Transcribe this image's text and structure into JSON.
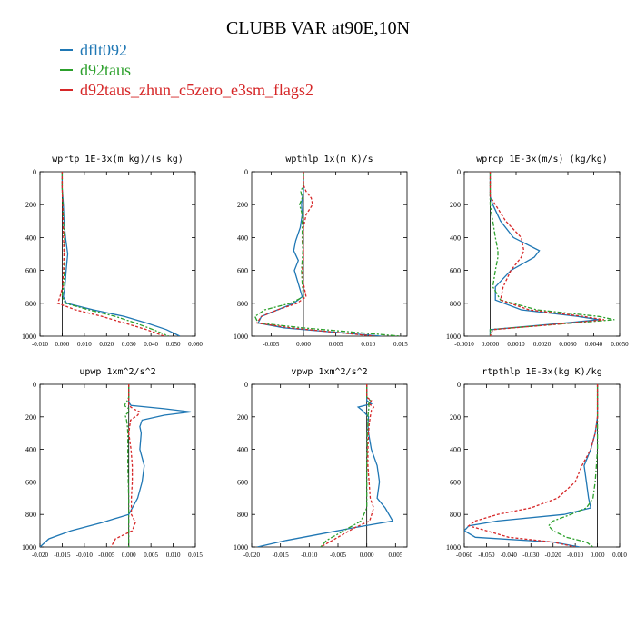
{
  "title": "CLUBB VAR at90E,10N",
  "legend": [
    {
      "name": "dflt092",
      "color": "#1f77b4"
    },
    {
      "name": "d92taus",
      "color": "#2ca02c"
    },
    {
      "name": "d92taus_zhun_c5zero_e3sm_flags2",
      "color": "#d62728"
    }
  ],
  "chart_data": [
    {
      "type": "line",
      "title": "wprtp  1E-3x(m kg)/(s kg)",
      "xlim": [
        -0.01,
        0.06
      ],
      "ylim": [
        0,
        1000
      ],
      "xticks": [
        "-0.010",
        "0.000",
        "0.010",
        "0.020",
        "0.030",
        "0.040",
        "0.050",
        "0.060"
      ],
      "yticks": [
        "0",
        "200",
        "400",
        "600",
        "800",
        "1000"
      ],
      "y": [
        0,
        100,
        200,
        300,
        400,
        500,
        600,
        700,
        760,
        800,
        840,
        880,
        920,
        960,
        1000
      ],
      "series": [
        {
          "name": "dflt092",
          "values": [
            0,
            0,
            0.0005,
            0.0008,
            0.0015,
            0.0025,
            0.0018,
            0.0012,
            0.0005,
            0.002,
            0.014,
            0.028,
            0.038,
            0.047,
            0.053
          ]
        },
        {
          "name": "d92taus",
          "values": [
            0,
            0,
            0.0003,
            0.0005,
            0.001,
            0.0012,
            0.001,
            0.0005,
            0,
            0.0015,
            0.012,
            0.024,
            0.033,
            0.041,
            0.048
          ]
        },
        {
          "name": "d92taus_zhun_c5zero_e3sm_flags2",
          "values": [
            0,
            0,
            0.0002,
            0.0004,
            0.0006,
            0.0008,
            0.0006,
            0.0002,
            -0.001,
            -0.002,
            0.006,
            0.018,
            0.028,
            0.038,
            0.046
          ]
        }
      ]
    },
    {
      "type": "line",
      "title": "wpthlp  1x(m K)/s",
      "xlim": [
        -0.008,
        0.016
      ],
      "ylim": [
        0,
        1000
      ],
      "xticks": [
        "-0.005",
        "0.000",
        "0.005",
        "0.010",
        "0.015"
      ],
      "yticks": [
        "0",
        "200",
        "400",
        "600",
        "800",
        "1000"
      ],
      "y": [
        0,
        80,
        120,
        160,
        200,
        260,
        340,
        420,
        480,
        540,
        600,
        680,
        760,
        800,
        840,
        880,
        920,
        950,
        1000
      ],
      "series": [
        {
          "name": "dflt092",
          "values": [
            0,
            0,
            0,
            -0.0002,
            -0.0003,
            -0.0002,
            -0.0005,
            -0.0012,
            -0.0015,
            -0.0008,
            -0.0014,
            -0.0008,
            -0.0002,
            -0.0015,
            -0.004,
            -0.0065,
            -0.007,
            -0.003,
            0.012
          ]
        },
        {
          "name": "d92taus",
          "values": [
            0,
            0,
            -0.0004,
            -0.0002,
            -0.0006,
            -0.0002,
            -0.0002,
            -0.0002,
            -0.0001,
            -0.0002,
            -0.0003,
            -0.0002,
            0,
            -0.002,
            -0.006,
            -0.0075,
            -0.007,
            0,
            0.015
          ]
        },
        {
          "name": "d92taus_zhun_c5zero_e3sm_flags2",
          "values": [
            0,
            0,
            0.0004,
            0.0012,
            0.0014,
            0.0004,
            0,
            -0.0001,
            0,
            0,
            -0.0002,
            0,
            0.0004,
            -0.001,
            -0.004,
            -0.0065,
            -0.0072,
            -0.002,
            0.011
          ]
        }
      ]
    },
    {
      "type": "line",
      "title": "wprcp  1E-3x(m/s) (kg/kg)",
      "xlim": [
        -0.001,
        0.005
      ],
      "ylim": [
        0,
        1000
      ],
      "xticks": [
        "-0.0010",
        "0.0000",
        "0.0010",
        "0.0020",
        "0.0030",
        "0.0040",
        "0.0050"
      ],
      "yticks": [
        "0",
        "200",
        "400",
        "600",
        "800",
        "1000"
      ],
      "y": [
        0,
        100,
        150,
        200,
        300,
        400,
        480,
        520,
        600,
        700,
        780,
        840,
        880,
        900,
        930,
        960,
        1000
      ],
      "series": [
        {
          "name": "dflt092",
          "values": [
            0,
            0,
            0,
            0.0001,
            0.0004,
            0.0009,
            0.0019,
            0.0017,
            0.0008,
            0.0002,
            0.0002,
            0.0012,
            0.0034,
            0.0042,
            0.0022,
            0,
            0
          ]
        },
        {
          "name": "d92taus",
          "values": [
            0,
            0,
            0,
            0,
            0.0001,
            0.0002,
            0.0003,
            0.0003,
            0.0002,
            0.0001,
            0.0004,
            0.0018,
            0.0042,
            0.0048,
            0.0024,
            0,
            0
          ]
        },
        {
          "name": "d92taus_zhun_c5zero_e3sm_flags2",
          "values": [
            0,
            0,
            0,
            0.0002,
            0.0006,
            0.0012,
            0.0013,
            0.0012,
            0.0008,
            0.0005,
            0.0004,
            0.0015,
            0.0036,
            0.0044,
            0.0024,
            0.0001,
            0
          ]
        }
      ]
    },
    {
      "type": "line",
      "title": "upwp  1xm^2/s^2",
      "xlim": [
        -0.02,
        0.015
      ],
      "ylim": [
        0,
        1000
      ],
      "xticks": [
        "-0.020",
        "-0.015",
        "-0.010",
        "-0.005",
        "0.000",
        "0.005",
        "0.010",
        "0.015"
      ],
      "yticks": [
        "0",
        "200",
        "400",
        "600",
        "800",
        "1000"
      ],
      "y": [
        0,
        80,
        110,
        130,
        150,
        170,
        190,
        220,
        260,
        300,
        400,
        500,
        600,
        700,
        800,
        850,
        900,
        950,
        1000
      ],
      "series": [
        {
          "name": "dflt092",
          "values": [
            0,
            0,
            0,
            0.0005,
            0.008,
            0.014,
            0.008,
            0.003,
            0.0025,
            0.0028,
            0.0025,
            0.0035,
            0.003,
            0.002,
            0,
            -0.006,
            -0.013,
            -0.018,
            -0.02
          ]
        },
        {
          "name": "d92taus",
          "values": [
            0,
            0,
            -0.0005,
            -0.001,
            0,
            0,
            -0.0008,
            -0.0005,
            -0.0003,
            -0.0002,
            -0.0002,
            -0.0002,
            -0.0001,
            0,
            0,
            0,
            0,
            0,
            0
          ]
        },
        {
          "name": "d92taus_zhun_c5zero_e3sm_flags2",
          "values": [
            0,
            0,
            0,
            0,
            0.001,
            0.0025,
            0.002,
            0.0004,
            0.0002,
            0,
            0.0005,
            0.0008,
            0.0008,
            0.0006,
            0.0006,
            0.0015,
            0.0008,
            -0.003,
            -0.004
          ]
        }
      ]
    },
    {
      "type": "line",
      "title": "vpwp  1xm^2/s^2",
      "xlim": [
        -0.02,
        0.007
      ],
      "ylim": [
        0,
        1000
      ],
      "xticks": [
        "-0.020",
        "-0.015",
        "-0.010",
        "-0.005",
        "0.000",
        "0.005"
      ],
      "yticks": [
        "0",
        "200",
        "400",
        "600",
        "800",
        "1000"
      ],
      "y": [
        0,
        80,
        100,
        120,
        140,
        160,
        200,
        250,
        300,
        400,
        500,
        600,
        700,
        760,
        840,
        880,
        920,
        960,
        1000
      ],
      "series": [
        {
          "name": "dflt092",
          "values": [
            0,
            0,
            0,
            0.0008,
            -0.0015,
            -0.0008,
            0.0003,
            0.0002,
            0.0003,
            0.0008,
            0.0018,
            0.0022,
            0.0018,
            0.0032,
            0.0045,
            -0.002,
            -0.008,
            -0.014,
            -0.019
          ]
        },
        {
          "name": "d92taus",
          "values": [
            0,
            0,
            0.0006,
            0.0003,
            0.0004,
            0.0003,
            0.0002,
            0.0002,
            0.0001,
            0.0001,
            0,
            0,
            0,
            0,
            -0.001,
            -0.003,
            -0.005,
            -0.007,
            -0.008
          ]
        },
        {
          "name": "d92taus_zhun_c5zero_e3sm_flags2",
          "values": [
            0,
            0,
            0.0008,
            0.0004,
            0.0012,
            0.0008,
            0.0006,
            0.0004,
            0.0003,
            0.0002,
            0.0002,
            0.0004,
            0.0006,
            0.0012,
            0.0005,
            -0.002,
            -0.004,
            -0.006,
            -0.008
          ]
        }
      ]
    },
    {
      "type": "line",
      "title": "rtpthlp  1E-3x(kg K)/kg",
      "xlim": [
        -0.06,
        0.01
      ],
      "ylim": [
        0,
        1000
      ],
      "xticks": [
        "-0.060",
        "-0.050",
        "-0.040",
        "-0.030",
        "-0.020",
        "-0.010",
        "0.000",
        "0.010"
      ],
      "yticks": [
        "0",
        "200",
        "400",
        "600",
        "800",
        "1000"
      ],
      "y": [
        0,
        200,
        300,
        400,
        500,
        600,
        700,
        760,
        800,
        840,
        870,
        900,
        940,
        970,
        1000
      ],
      "series": [
        {
          "name": "dflt092",
          "values": [
            0,
            0,
            -0.001,
            -0.003,
            -0.006,
            -0.005,
            -0.004,
            -0.003,
            -0.015,
            -0.045,
            -0.058,
            -0.06,
            -0.055,
            -0.02,
            -0.008
          ]
        },
        {
          "name": "d92taus",
          "values": [
            0,
            0,
            0,
            0,
            -0.0005,
            -0.001,
            -0.002,
            -0.005,
            -0.012,
            -0.02,
            -0.022,
            -0.02,
            -0.014,
            -0.005,
            -0.002
          ]
        },
        {
          "name": "d92taus_zhun_c5zero_e3sm_flags2",
          "values": [
            0,
            0,
            -0.001,
            -0.003,
            -0.007,
            -0.01,
            -0.018,
            -0.03,
            -0.045,
            -0.055,
            -0.058,
            -0.05,
            -0.04,
            -0.02,
            -0.01
          ]
        }
      ]
    }
  ]
}
